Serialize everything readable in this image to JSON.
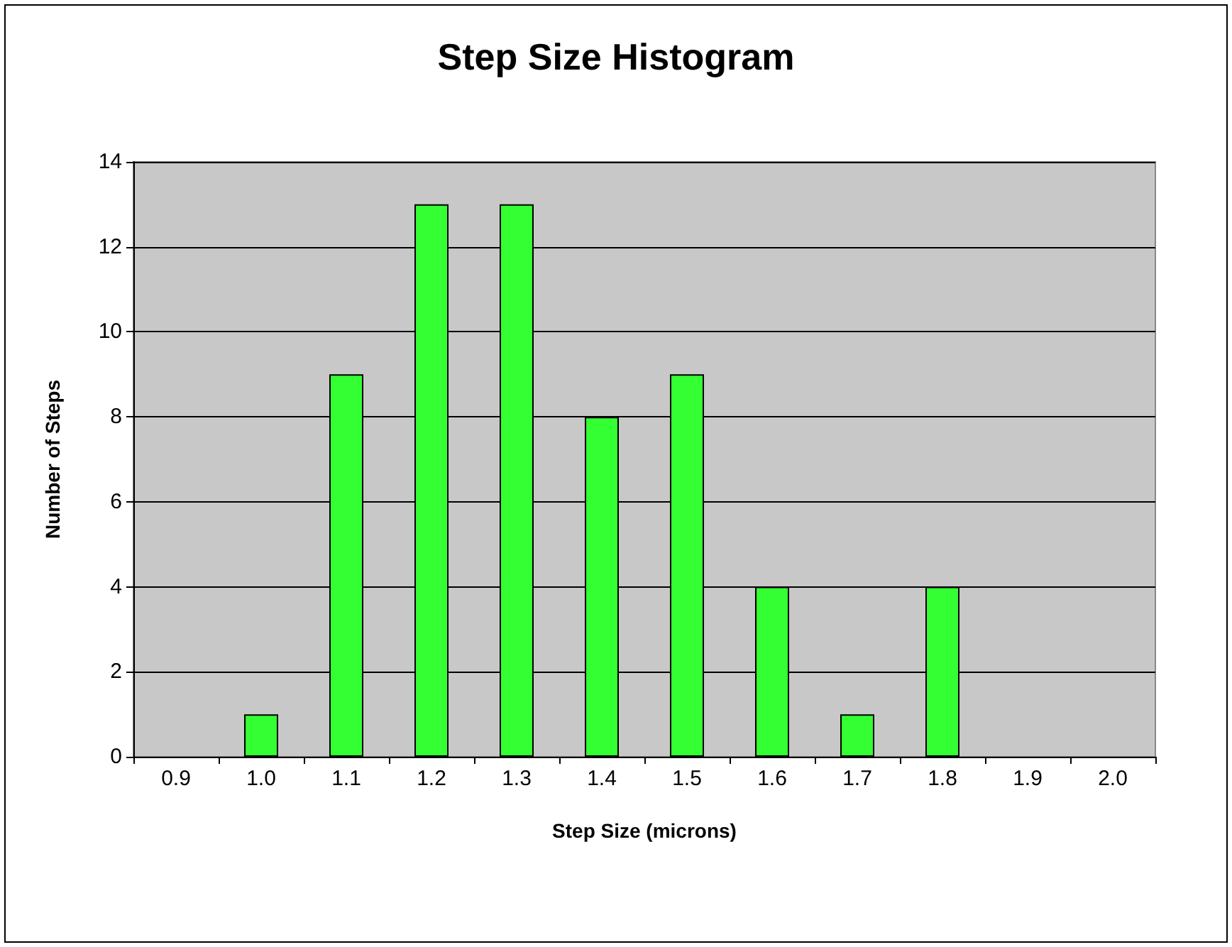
{
  "chart_data": {
    "type": "bar",
    "title": "Step Size Histogram",
    "xlabel": "Step Size (microns)",
    "ylabel": "Number of Steps",
    "categories": [
      "0.9",
      "1.0",
      "1.1",
      "1.2",
      "1.3",
      "1.4",
      "1.5",
      "1.6",
      "1.7",
      "1.8",
      "1.9",
      "2.0"
    ],
    "values": [
      0,
      1,
      9,
      13,
      13,
      8,
      9,
      4,
      1,
      4,
      0,
      0
    ],
    "color": "#33ff33",
    "ylim": [
      0,
      14
    ],
    "yticks": [
      0,
      2,
      4,
      6,
      8,
      10,
      12,
      14
    ],
    "grid": "y"
  }
}
